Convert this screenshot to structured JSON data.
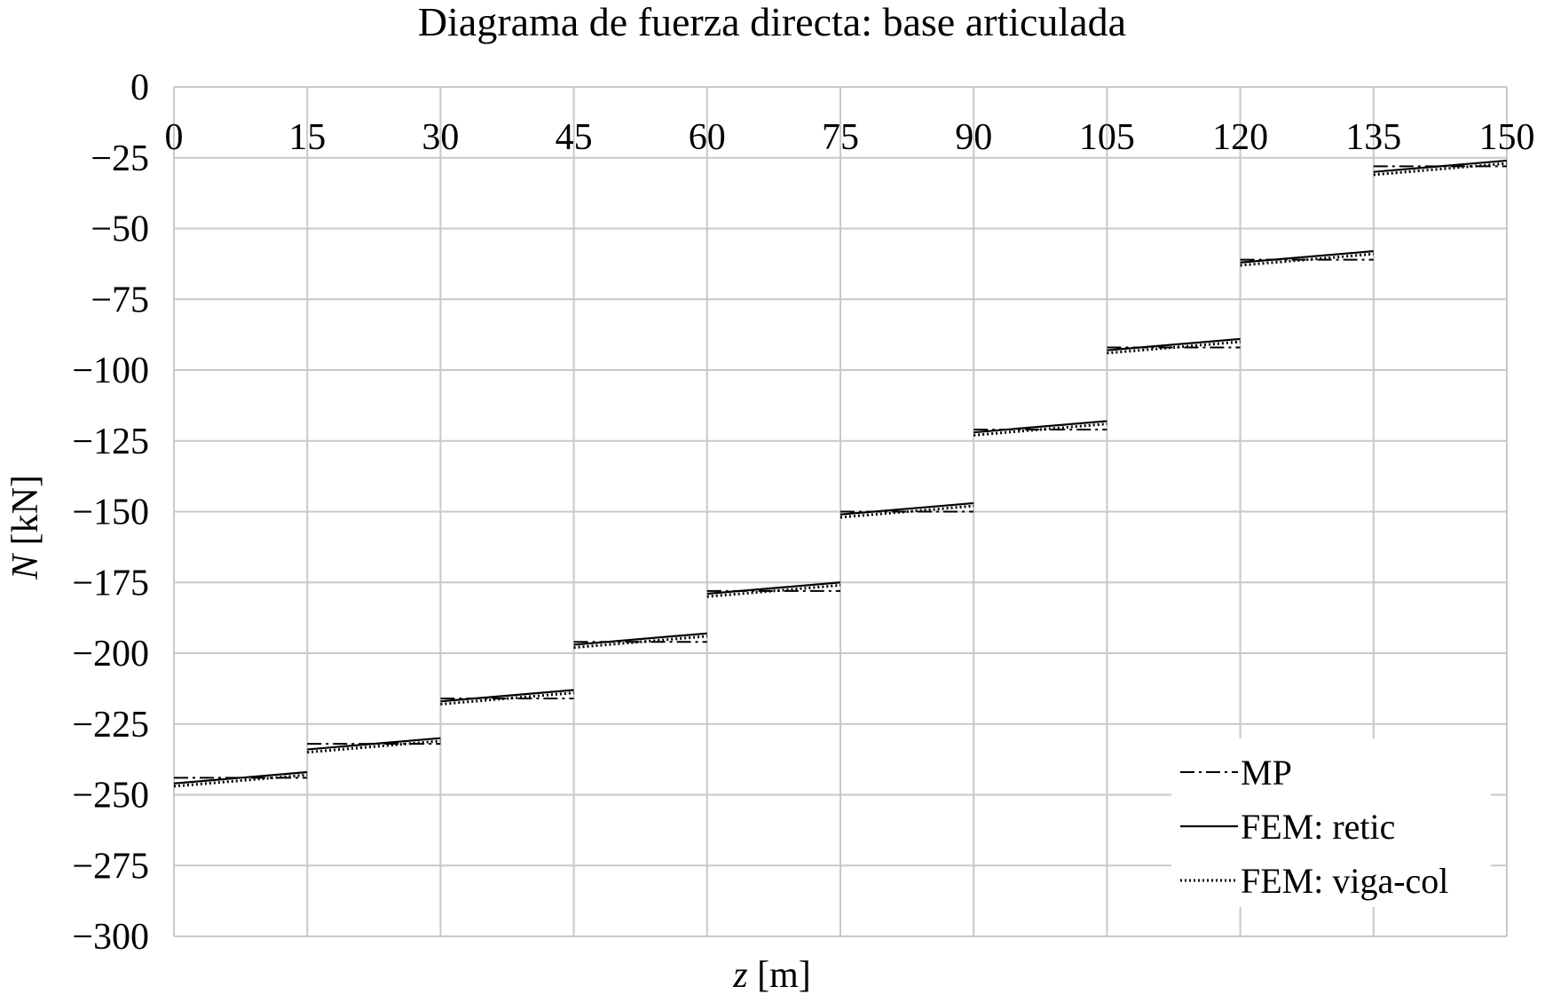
{
  "chart_data": {
    "type": "line",
    "title": "Diagrama de fuerza directa: base articulada",
    "xlabel_var": "z",
    "xlabel_unit": " [m]",
    "ylabel_var": "N",
    "ylabel_unit": " [kN]",
    "xlim": [
      0,
      150
    ],
    "ylim": [
      -300,
      0
    ],
    "xticks": [
      0,
      15,
      30,
      45,
      60,
      75,
      90,
      105,
      120,
      135,
      150
    ],
    "yticks": [
      0,
      -25,
      -50,
      -75,
      -100,
      -125,
      -150,
      -175,
      -200,
      -225,
      -250,
      -275,
      -300
    ],
    "ytick_labels": [
      "0",
      "−25",
      "−50",
      "−75",
      "−100",
      "−125",
      "−150",
      "−175",
      "−200",
      "−225",
      "−250",
      "−275",
      "−300"
    ],
    "grid": true,
    "legend_position": "bottom-right",
    "series": [
      {
        "name": "MP",
        "style": "dash-dot",
        "segments": [
          [
            [
              0,
              -244
            ],
            [
              15,
              -244
            ]
          ],
          [
            [
              15,
              -232
            ],
            [
              30,
              -232
            ]
          ],
          [
            [
              30,
              -216
            ],
            [
              45,
              -216
            ]
          ],
          [
            [
              45,
              -196
            ],
            [
              60,
              -196
            ]
          ],
          [
            [
              60,
              -178
            ],
            [
              75,
              -178
            ]
          ],
          [
            [
              75,
              -150
            ],
            [
              90,
              -150
            ]
          ],
          [
            [
              90,
              -121
            ],
            [
              105,
              -121
            ]
          ],
          [
            [
              105,
              -92
            ],
            [
              120,
              -92
            ]
          ],
          [
            [
              120,
              -61
            ],
            [
              135,
              -61
            ]
          ],
          [
            [
              135,
              -28
            ],
            [
              150,
              -28
            ]
          ]
        ]
      },
      {
        "name": "FEM: retic",
        "style": "solid",
        "segments": [
          [
            [
              0,
              -246
            ],
            [
              15,
              -242
            ]
          ],
          [
            [
              15,
              -234
            ],
            [
              30,
              -230
            ]
          ],
          [
            [
              30,
              -217
            ],
            [
              45,
              -213
            ]
          ],
          [
            [
              45,
              -197
            ],
            [
              60,
              -193
            ]
          ],
          [
            [
              60,
              -179
            ],
            [
              75,
              -175
            ]
          ],
          [
            [
              75,
              -151
            ],
            [
              90,
              -147
            ]
          ],
          [
            [
              90,
              -122
            ],
            [
              105,
              -118
            ]
          ],
          [
            [
              105,
              -93
            ],
            [
              120,
              -89
            ]
          ],
          [
            [
              120,
              -62
            ],
            [
              135,
              -58
            ]
          ],
          [
            [
              135,
              -30
            ],
            [
              150,
              -26
            ]
          ]
        ]
      },
      {
        "name": "FEM: viga-col",
        "style": "dotted",
        "segments": [
          [
            [
              0,
              -247
            ],
            [
              15,
              -243
            ]
          ],
          [
            [
              15,
              -235
            ],
            [
              30,
              -231
            ]
          ],
          [
            [
              30,
              -218
            ],
            [
              45,
              -214
            ]
          ],
          [
            [
              45,
              -198
            ],
            [
              60,
              -194
            ]
          ],
          [
            [
              60,
              -180
            ],
            [
              75,
              -176
            ]
          ],
          [
            [
              75,
              -152
            ],
            [
              90,
              -148
            ]
          ],
          [
            [
              90,
              -123
            ],
            [
              105,
              -119
            ]
          ],
          [
            [
              105,
              -94
            ],
            [
              120,
              -90
            ]
          ],
          [
            [
              120,
              -63
            ],
            [
              135,
              -59
            ]
          ],
          [
            [
              135,
              -31
            ],
            [
              150,
              -27
            ]
          ]
        ]
      }
    ]
  }
}
